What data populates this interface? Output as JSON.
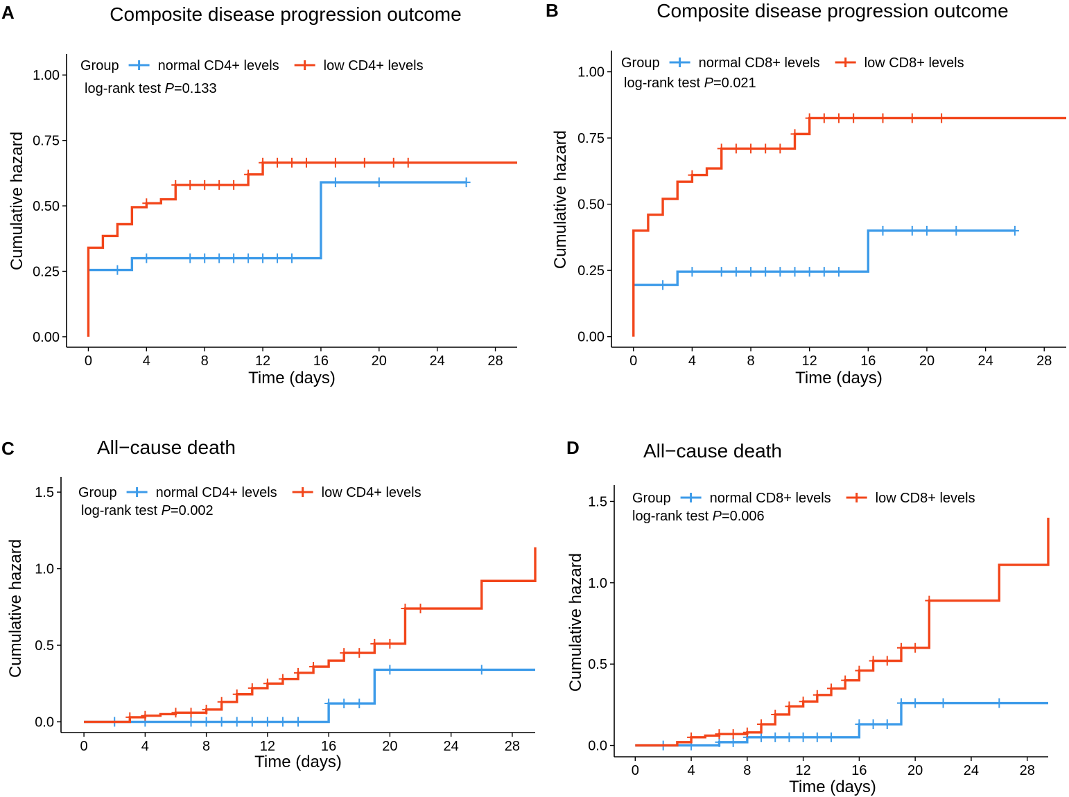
{
  "colors": {
    "normal": "#3d9be9",
    "low": "#f2461b"
  },
  "chart_data": [
    {
      "type": "line",
      "panel": "A",
      "title": "Composite disease progression outcome",
      "xlabel": "Time (days)",
      "ylabel": "Cumulative hazard",
      "xlim": [
        -1.5,
        29.5
      ],
      "ylim": [
        -0.04,
        1.08
      ],
      "x_ticks": [
        "0",
        "4",
        "8",
        "12",
        "16",
        "20",
        "24",
        "28"
      ],
      "y_ticks": [
        "0.00",
        "0.25",
        "0.50",
        "0.75",
        "1.00"
      ],
      "legend_title": "Group",
      "annotation": {
        "prefix": "log-rank test ",
        "p": "P",
        "value": "=0.133"
      },
      "series": [
        {
          "name": "normal CD4+ levels",
          "color_key": "normal",
          "steps": [
            [
              0,
              0.255
            ],
            [
              3,
              0.3
            ],
            [
              16,
              0.59
            ],
            [
              26,
              0.59
            ]
          ],
          "censor": [
            [
              2,
              0.255
            ],
            [
              4,
              0.3
            ],
            [
              7,
              0.3
            ],
            [
              8,
              0.3
            ],
            [
              9,
              0.3
            ],
            [
              10,
              0.3
            ],
            [
              11,
              0.3
            ],
            [
              12,
              0.3
            ],
            [
              13,
              0.3
            ],
            [
              14,
              0.3
            ],
            [
              17,
              0.59
            ],
            [
              20,
              0.59
            ],
            [
              26,
              0.59
            ]
          ]
        },
        {
          "name": "low CD4+ levels",
          "color_key": "low",
          "steps": [
            [
              0,
              0
            ],
            [
              0,
              0.34
            ],
            [
              1,
              0.385
            ],
            [
              2,
              0.43
            ],
            [
              3,
              0.495
            ],
            [
              4,
              0.51
            ],
            [
              5,
              0.525
            ],
            [
              6,
              0.58
            ],
            [
              11,
              0.62
            ],
            [
              12,
              0.665
            ],
            [
              29.5,
              0.665
            ]
          ],
          "censor": [
            [
              4,
              0.51
            ],
            [
              6,
              0.58
            ],
            [
              7,
              0.58
            ],
            [
              8,
              0.58
            ],
            [
              9,
              0.58
            ],
            [
              10,
              0.58
            ],
            [
              11,
              0.62
            ],
            [
              12,
              0.665
            ],
            [
              13,
              0.665
            ],
            [
              14,
              0.665
            ],
            [
              15,
              0.665
            ],
            [
              17,
              0.665
            ],
            [
              19,
              0.665
            ],
            [
              21,
              0.665
            ],
            [
              22,
              0.665
            ]
          ]
        }
      ]
    },
    {
      "type": "line",
      "panel": "B",
      "title": "Composite disease progression outcome",
      "xlabel": "Time (days)",
      "ylabel": "Cumulative hazard",
      "xlim": [
        -1.5,
        29.5
      ],
      "ylim": [
        -0.04,
        1.08
      ],
      "x_ticks": [
        "0",
        "4",
        "8",
        "12",
        "16",
        "20",
        "24",
        "28"
      ],
      "y_ticks": [
        "0.00",
        "0.25",
        "0.50",
        "0.75",
        "1.00"
      ],
      "legend_title": "Group",
      "annotation": {
        "prefix": "log-rank test ",
        "p": "P",
        "value": "=0.021"
      },
      "series": [
        {
          "name": "normal CD8+ levels",
          "color_key": "normal",
          "steps": [
            [
              0,
              0.195
            ],
            [
              3,
              0.245
            ],
            [
              16,
              0.4
            ],
            [
              26,
              0.4
            ]
          ],
          "censor": [
            [
              2,
              0.195
            ],
            [
              4,
              0.245
            ],
            [
              6,
              0.245
            ],
            [
              7,
              0.245
            ],
            [
              8,
              0.245
            ],
            [
              9,
              0.245
            ],
            [
              10,
              0.245
            ],
            [
              11,
              0.245
            ],
            [
              12,
              0.245
            ],
            [
              13,
              0.245
            ],
            [
              14,
              0.245
            ],
            [
              17,
              0.4
            ],
            [
              19,
              0.4
            ],
            [
              20,
              0.4
            ],
            [
              22,
              0.4
            ],
            [
              26,
              0.4
            ]
          ]
        },
        {
          "name": "low CD8+ levels",
          "color_key": "low",
          "steps": [
            [
              0,
              0
            ],
            [
              0,
              0.4
            ],
            [
              1,
              0.46
            ],
            [
              2,
              0.52
            ],
            [
              3,
              0.585
            ],
            [
              4,
              0.61
            ],
            [
              5,
              0.635
            ],
            [
              6,
              0.71
            ],
            [
              11,
              0.765
            ],
            [
              12,
              0.825
            ],
            [
              29.5,
              0.825
            ]
          ],
          "censor": [
            [
              4,
              0.61
            ],
            [
              6,
              0.71
            ],
            [
              7,
              0.71
            ],
            [
              8,
              0.71
            ],
            [
              9,
              0.71
            ],
            [
              10,
              0.71
            ],
            [
              11,
              0.765
            ],
            [
              12,
              0.825
            ],
            [
              13,
              0.825
            ],
            [
              14,
              0.825
            ],
            [
              15,
              0.825
            ],
            [
              17,
              0.825
            ],
            [
              19,
              0.825
            ],
            [
              21,
              0.825
            ]
          ]
        }
      ]
    },
    {
      "type": "line",
      "panel": "C",
      "title": "All−cause death",
      "xlabel": "Time (days)",
      "ylabel": "Cumulative hazard",
      "xlim": [
        -1.5,
        29.5
      ],
      "ylim": [
        -0.07,
        1.6
      ],
      "x_ticks": [
        "0",
        "4",
        "8",
        "12",
        "16",
        "20",
        "24",
        "28"
      ],
      "y_ticks": [
        "0.0",
        "0.5",
        "1.0",
        "1.5"
      ],
      "legend_title": "Group",
      "annotation": {
        "prefix": "log-rank test ",
        "p": "P",
        "value": "=0.002"
      },
      "series": [
        {
          "name": "normal CD4+ levels",
          "color_key": "normal",
          "steps": [
            [
              0,
              0
            ],
            [
              16,
              0.12
            ],
            [
              19,
              0.34
            ],
            [
              29.5,
              0.34
            ]
          ],
          "censor": [
            [
              2,
              0
            ],
            [
              4,
              0
            ],
            [
              7,
              0
            ],
            [
              8,
              0
            ],
            [
              9,
              0
            ],
            [
              10,
              0
            ],
            [
              11,
              0
            ],
            [
              12,
              0
            ],
            [
              13,
              0
            ],
            [
              14,
              0
            ],
            [
              16,
              0.12
            ],
            [
              17,
              0.12
            ],
            [
              18,
              0.12
            ],
            [
              20,
              0.34
            ],
            [
              26,
              0.34
            ]
          ]
        },
        {
          "name": "low CD4+ levels",
          "color_key": "low",
          "steps": [
            [
              0,
              0
            ],
            [
              3,
              0.03
            ],
            [
              4,
              0.04
            ],
            [
              5,
              0.05
            ],
            [
              6,
              0.06
            ],
            [
              8,
              0.08
            ],
            [
              9,
              0.13
            ],
            [
              10,
              0.18
            ],
            [
              11,
              0.22
            ],
            [
              12,
              0.25
            ],
            [
              13,
              0.28
            ],
            [
              14,
              0.32
            ],
            [
              15,
              0.36
            ],
            [
              16,
              0.4
            ],
            [
              17,
              0.45
            ],
            [
              19,
              0.51
            ],
            [
              21,
              0.74
            ],
            [
              26,
              0.92
            ],
            [
              29.5,
              1.14
            ]
          ],
          "censor": [
            [
              3,
              0.03
            ],
            [
              4,
              0.04
            ],
            [
              6,
              0.06
            ],
            [
              7,
              0.06
            ],
            [
              8,
              0.08
            ],
            [
              9,
              0.13
            ],
            [
              10,
              0.18
            ],
            [
              11,
              0.22
            ],
            [
              12,
              0.25
            ],
            [
              13,
              0.28
            ],
            [
              14,
              0.32
            ],
            [
              15,
              0.36
            ],
            [
              17,
              0.45
            ],
            [
              18,
              0.45
            ],
            [
              19,
              0.51
            ],
            [
              20,
              0.51
            ],
            [
              21,
              0.74
            ],
            [
              22,
              0.74
            ]
          ]
        }
      ]
    },
    {
      "type": "line",
      "panel": "D",
      "title": "All−cause death",
      "xlabel": "Time (days)",
      "ylabel": "Cumulative hazard",
      "xlim": [
        -1.5,
        29.5
      ],
      "ylim": [
        -0.07,
        1.6
      ],
      "x_ticks": [
        "0",
        "4",
        "8",
        "12",
        "16",
        "20",
        "24",
        "28"
      ],
      "y_ticks": [
        "0.0",
        "0.5",
        "1.0",
        "1.5"
      ],
      "legend_title": "Group",
      "annotation": {
        "prefix": "log-rank test ",
        "p": "P",
        "value": "=0.006"
      },
      "series": [
        {
          "name": "normal CD8+ levels",
          "color_key": "normal",
          "steps": [
            [
              0,
              0
            ],
            [
              6,
              0.02
            ],
            [
              8,
              0.05
            ],
            [
              16,
              0.13
            ],
            [
              19,
              0.26
            ],
            [
              29.5,
              0.26
            ]
          ],
          "censor": [
            [
              2,
              0
            ],
            [
              4,
              0
            ],
            [
              6,
              0.02
            ],
            [
              7,
              0.02
            ],
            [
              8,
              0.05
            ],
            [
              9,
              0.05
            ],
            [
              10,
              0.05
            ],
            [
              11,
              0.05
            ],
            [
              12,
              0.05
            ],
            [
              13,
              0.05
            ],
            [
              14,
              0.05
            ],
            [
              16,
              0.13
            ],
            [
              17,
              0.13
            ],
            [
              18,
              0.13
            ],
            [
              19,
              0.26
            ],
            [
              20,
              0.26
            ],
            [
              22,
              0.26
            ],
            [
              26,
              0.26
            ]
          ]
        },
        {
          "name": "low CD8+ levels",
          "color_key": "low",
          "steps": [
            [
              0,
              0
            ],
            [
              3,
              0.02
            ],
            [
              4,
              0.05
            ],
            [
              5,
              0.06
            ],
            [
              6,
              0.07
            ],
            [
              8,
              0.08
            ],
            [
              9,
              0.13
            ],
            [
              10,
              0.19
            ],
            [
              11,
              0.24
            ],
            [
              12,
              0.27
            ],
            [
              13,
              0.31
            ],
            [
              14,
              0.35
            ],
            [
              15,
              0.4
            ],
            [
              16,
              0.46
            ],
            [
              17,
              0.52
            ],
            [
              19,
              0.6
            ],
            [
              21,
              0.89
            ],
            [
              26,
              1.11
            ],
            [
              29.5,
              1.4
            ]
          ],
          "censor": [
            [
              4,
              0.05
            ],
            [
              6,
              0.07
            ],
            [
              7,
              0.07
            ],
            [
              8,
              0.08
            ],
            [
              9,
              0.13
            ],
            [
              10,
              0.19
            ],
            [
              11,
              0.24
            ],
            [
              12,
              0.27
            ],
            [
              13,
              0.31
            ],
            [
              14,
              0.35
            ],
            [
              15,
              0.4
            ],
            [
              16,
              0.46
            ],
            [
              17,
              0.52
            ],
            [
              18,
              0.52
            ],
            [
              19,
              0.6
            ],
            [
              20,
              0.6
            ],
            [
              21,
              0.89
            ]
          ]
        }
      ]
    }
  ]
}
